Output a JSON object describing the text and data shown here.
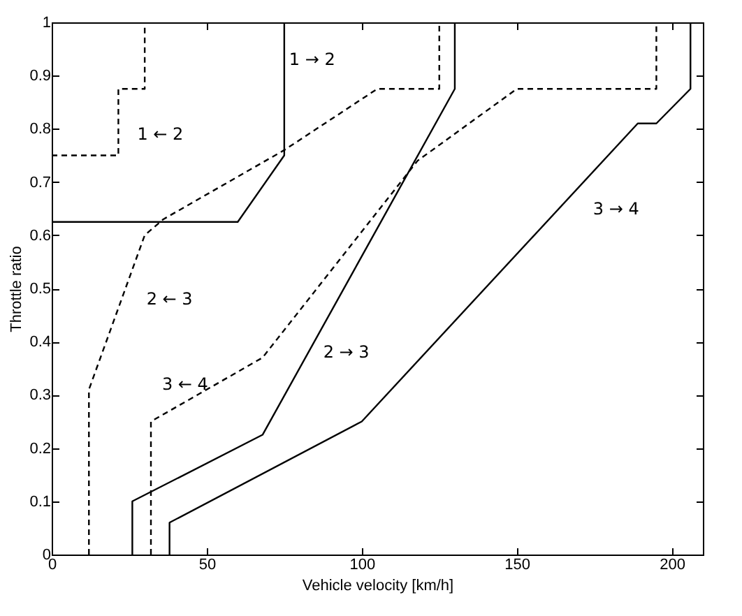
{
  "chart_data": {
    "type": "line",
    "xlabel": "Vehicle velocity [km/h]",
    "ylabel": "Throttle ratio",
    "xlim": [
      0,
      210
    ],
    "ylim": [
      0,
      1
    ],
    "xticks": [
      0,
      50,
      100,
      150,
      200
    ],
    "yticks": [
      0,
      0.1,
      0.2,
      0.3,
      0.4,
      0.5,
      0.6,
      0.7,
      0.8,
      0.9,
      1
    ],
    "series": [
      {
        "name": "1 → 2",
        "color": "#000000",
        "line_style": "solid",
        "x": [
          0,
          60,
          75,
          75
        ],
        "values": [
          0.625,
          0.625,
          0.75,
          1
        ]
      },
      {
        "name": "1 ← 2",
        "color": "#000000",
        "line_style": "dashed",
        "x": [
          0,
          21.5,
          21.5,
          30,
          30
        ],
        "values": [
          0.75,
          0.75,
          0.875,
          0.875,
          1
        ]
      },
      {
        "name": "2 → 3",
        "color": "#000000",
        "line_style": "solid",
        "x": [
          26,
          26,
          68,
          130,
          130
        ],
        "values": [
          0,
          0.1,
          0.225,
          0.875,
          1
        ]
      },
      {
        "name": "2 ← 3",
        "color": "#000000",
        "line_style": "dashed",
        "x": [
          12,
          12,
          30,
          36,
          75,
          105,
          125,
          125
        ],
        "values": [
          0,
          0.31,
          0.6,
          0.63,
          0.76,
          0.875,
          0.875,
          1
        ]
      },
      {
        "name": "3 → 4",
        "color": "#000000",
        "line_style": "solid",
        "x": [
          38,
          38,
          100,
          189,
          195,
          206,
          206
        ],
        "values": [
          0,
          0.06,
          0.25,
          0.81,
          0.81,
          0.875,
          1
        ]
      },
      {
        "name": "3 ← 4",
        "color": "#000000",
        "line_style": "dashed",
        "x": [
          32,
          32,
          68,
          118,
          150,
          195,
          195
        ],
        "values": [
          0,
          0.25,
          0.37,
          0.74,
          0.875,
          0.875,
          1
        ]
      }
    ]
  }
}
